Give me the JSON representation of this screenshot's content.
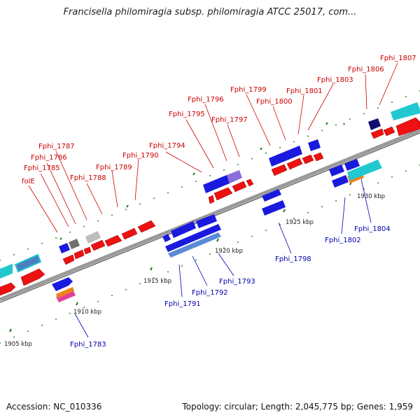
{
  "header": {
    "title": "Francisella philomiragia subsp. philomiragia ATCC 25017, com..."
  },
  "footer": {
    "accession": "Accession: NC_010336",
    "summary": "Topology: circular; Length: 2,045,775 bp; Genes: 1,959"
  },
  "colors": {
    "forward_gene": "#ee1111",
    "reverse_gene": "#1a1adf",
    "forward_label": "#cc0000",
    "reverse_label": "#0000aa",
    "backbone": "#888888",
    "tick": "#228b22",
    "cyan_feature": "#22c8d0",
    "orange_feature": "#f08020",
    "pink_feature": "#e0409a",
    "purple_feature": "#8a6fd8"
  },
  "scale_labels": [
    "1905 kbp",
    "1910 kbp",
    "1915 kbp",
    "1920 kbp",
    "1925 kbp",
    "1930 kbp"
  ],
  "forward_labels": [
    "folE",
    "Fphi_1785",
    "Fphi_1786",
    "Fphi_1787",
    "Fphi_1788",
    "Fphi_1789",
    "Fphi_1790",
    "Fphi_1794",
    "Fphi_1795",
    "Fphi_1796",
    "Fphi_1797",
    "Fphi_1799",
    "Fphi_1800",
    "Fphi_1801",
    "Fphi_1803",
    "Fphi_1806",
    "Fphi_1807"
  ],
  "reverse_labels": [
    "Fphi_1783",
    "Fphi_1791",
    "Fphi_1792",
    "Fphi_1793",
    "Fphi_1798",
    "Fphi_1802",
    "Fphi_1804"
  ]
}
